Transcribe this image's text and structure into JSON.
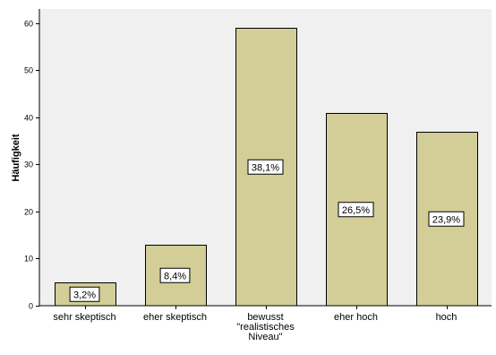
{
  "chart_data": {
    "type": "bar",
    "title": "",
    "xlabel": "",
    "ylabel": "Häufigkeit",
    "ylim": [
      0,
      63
    ],
    "yticks": [
      0,
      10,
      20,
      30,
      40,
      50,
      60
    ],
    "grid": false,
    "categories": [
      [
        "sehr skeptisch"
      ],
      [
        "eher skeptisch"
      ],
      [
        "bewusst",
        "\"realistisches",
        "Niveau\""
      ],
      [
        "eher hoch"
      ],
      [
        "hoch"
      ]
    ],
    "values": [
      5,
      13,
      59,
      41,
      37
    ],
    "data_labels": [
      "3,2%",
      "8,4%",
      "38,1%",
      "26,5%",
      "23,9%"
    ],
    "colors": {
      "plot_background": "#f0f0f0",
      "bar_fill": "#d3ce97",
      "bar_stroke": "#000000"
    }
  }
}
